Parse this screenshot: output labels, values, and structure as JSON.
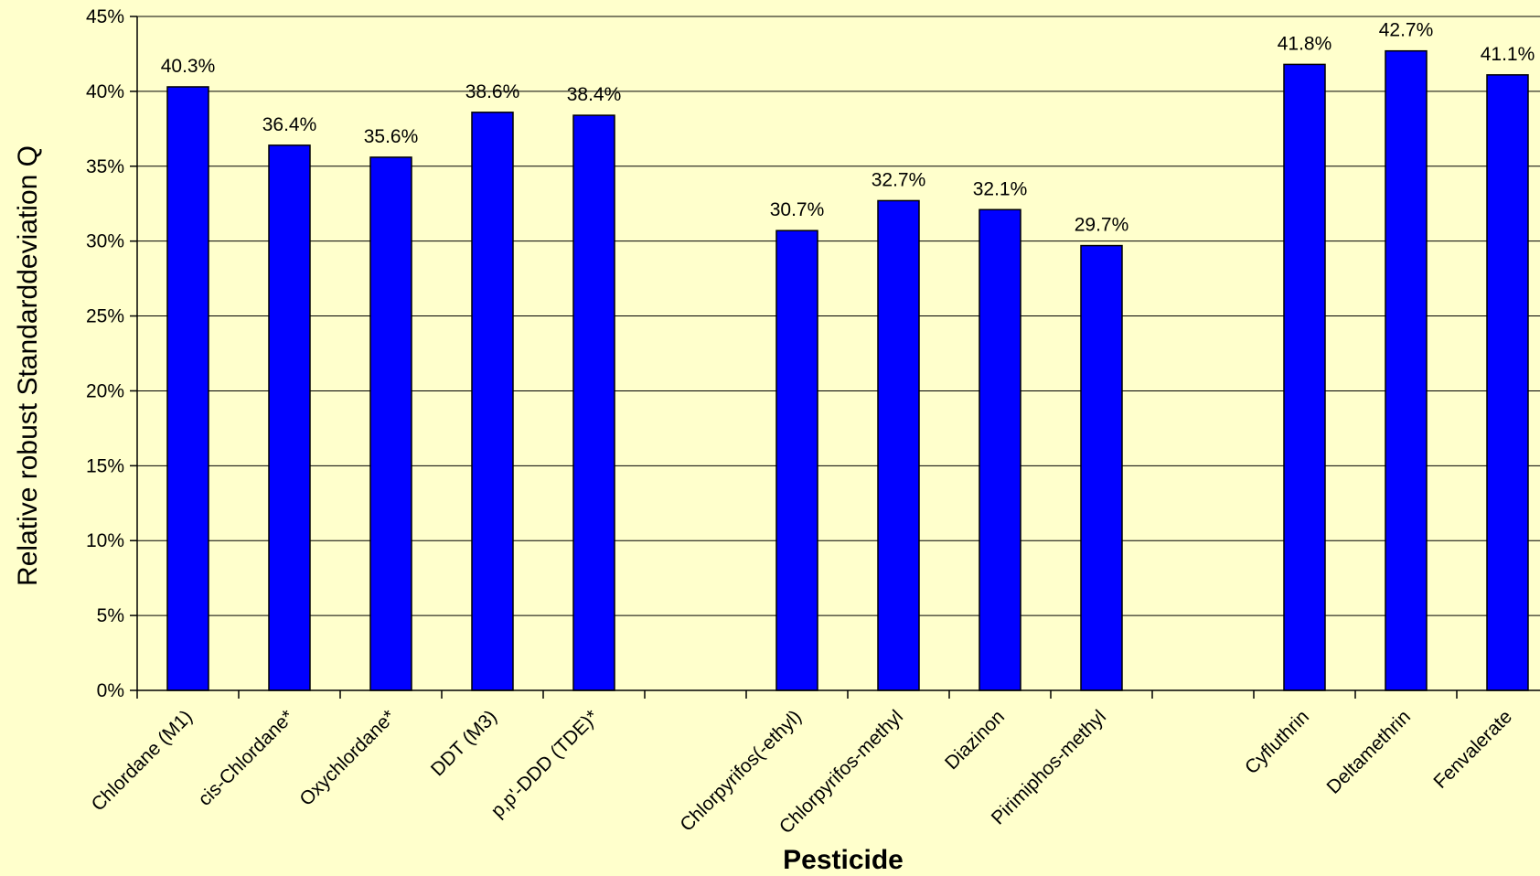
{
  "chart_data": {
    "type": "bar",
    "xlabel": "Pesticide",
    "ylabel": "Relative robust Standarddeviation Q",
    "ylim": [
      0,
      45
    ],
    "yticks": [
      "0%",
      "5%",
      "10%",
      "15%",
      "20%",
      "25%",
      "30%",
      "35%",
      "40%",
      "45%"
    ],
    "grid": true,
    "legend": "none",
    "bar_color": "#0000ff",
    "categories": [
      "Chlordane (M1)",
      "cis-Chlordane*",
      "Oxychlordane*",
      "DDT (M3)",
      "p,p'-DDD (TDE)*",
      "",
      "Chlorpyrifos(-ethyl)",
      "Chlorpyrifos-methyl",
      "Diazinon",
      "Pirimiphos-methyl",
      "",
      "Cyfluthrin",
      "Deltamethrin",
      "Fenvalerate"
    ],
    "values": [
      40.3,
      36.4,
      35.6,
      38.6,
      38.4,
      null,
      30.7,
      32.7,
      32.1,
      29.7,
      null,
      41.8,
      42.7,
      41.1
    ],
    "data_labels": [
      "40.3%",
      "36.4%",
      "35.6%",
      "38.6%",
      "38.4%",
      "",
      "30.7%",
      "32.7%",
      "32.1%",
      "29.7%",
      "",
      "41.8%",
      "42.7%",
      "41.1%"
    ]
  }
}
